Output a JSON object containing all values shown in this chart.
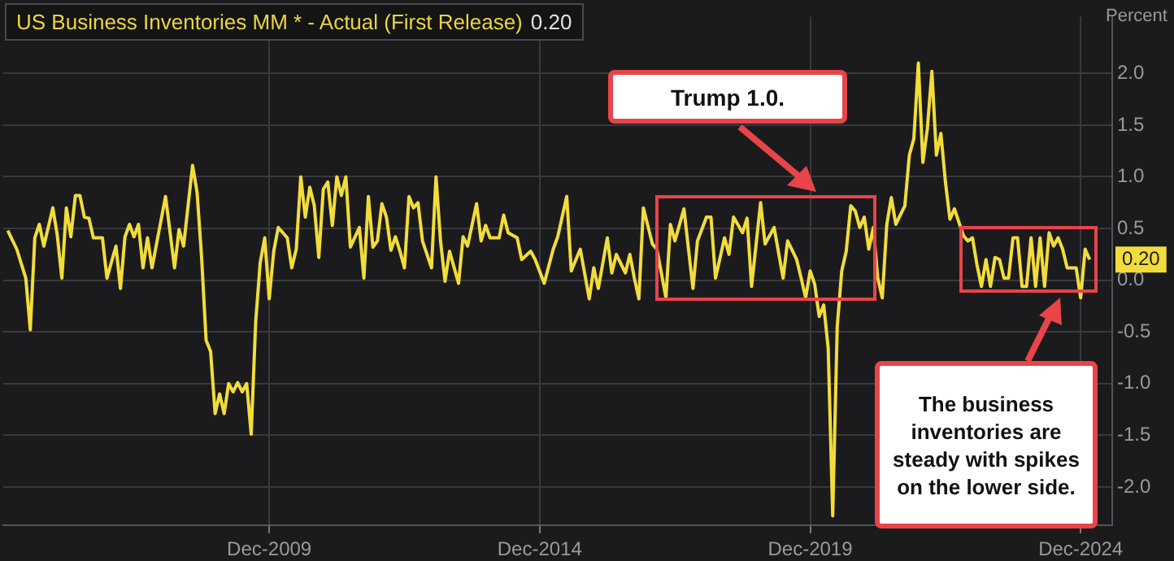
{
  "chart_data": {
    "type": "line",
    "title": "US Business Inventories MM * - Actual (First Release)",
    "subtitle": "0.20",
    "ylabel": "Percent",
    "annotations": [
      "Trump 1.0.",
      "The business inventories are steady with spikes on the lower side."
    ],
    "x": [
      "2005-02",
      "2005-04",
      "2005-06",
      "2005-07",
      "2005-08",
      "2005-09",
      "2005-10",
      "2005-12",
      "2006-01",
      "2006-02",
      "2006-03",
      "2006-04",
      "2006-05",
      "2006-06",
      "2006-07",
      "2006-08",
      "2006-09",
      "2006-11",
      "2006-12",
      "2007-02",
      "2007-03",
      "2007-04",
      "2007-05",
      "2007-06",
      "2007-07",
      "2007-08",
      "2007-09",
      "2007-10",
      "2008-01",
      "2008-03",
      "2008-04",
      "2008-05",
      "2008-07",
      "2008-08",
      "2008-09",
      "2008-10",
      "2008-11",
      "2008-12",
      "2009-01",
      "2009-02",
      "2009-03",
      "2009-04",
      "2009-05",
      "2009-06",
      "2009-07",
      "2009-08",
      "2009-09",
      "2009-10",
      "2009-11",
      "2009-12",
      "2010-01",
      "2010-02",
      "2010-04",
      "2010-05",
      "2010-06",
      "2010-07",
      "2010-08",
      "2010-09",
      "2010-10",
      "2010-11",
      "2010-12",
      "2011-01",
      "2011-02",
      "2011-03",
      "2011-04",
      "2011-05",
      "2011-06",
      "2011-08",
      "2011-09",
      "2011-10",
      "2011-11",
      "2011-12",
      "2012-01",
      "2012-02",
      "2012-03",
      "2012-04",
      "2012-05",
      "2012-06",
      "2012-07",
      "2012-08",
      "2012-09",
      "2012-10",
      "2012-12",
      "2013-01",
      "2013-02",
      "2013-03",
      "2013-04",
      "2013-06",
      "2013-07",
      "2013-08",
      "2013-10",
      "2013-11",
      "2013-12",
      "2014-01",
      "2014-03",
      "2014-04",
      "2014-05",
      "2014-07",
      "2014-08",
      "2014-10",
      "2014-11",
      "2015-01",
      "2015-03",
      "2015-04",
      "2015-06",
      "2015-07",
      "2015-09",
      "2015-11",
      "2015-12",
      "2016-01",
      "2016-03",
      "2016-04",
      "2016-05",
      "2016-07",
      "2016-08",
      "2016-09",
      "2016-10",
      "2016-11",
      "2017-01",
      "2017-02",
      "2017-04",
      "2017-05",
      "2017-06",
      "2017-08",
      "2017-10",
      "2017-11",
      "2018-01",
      "2018-02",
      "2018-03",
      "2018-05",
      "2018-06",
      "2018-07",
      "2018-09",
      "2018-10",
      "2018-11",
      "2019-01",
      "2019-02",
      "2019-04",
      "2019-06",
      "2019-07",
      "2019-09",
      "2019-10",
      "2019-11",
      "2019-12",
      "2020-01",
      "2020-02",
      "2020-03",
      "2020-04",
      "2020-05",
      "2020-06",
      "2020-07",
      "2020-08",
      "2020-09",
      "2020-10",
      "2020-11",
      "2020-12",
      "2021-01",
      "2021-02",
      "2021-03",
      "2021-04",
      "2021-05",
      "2021-06",
      "2021-07",
      "2021-09",
      "2021-10",
      "2021-11",
      "2021-12",
      "2022-01",
      "2022-02",
      "2022-03",
      "2022-04",
      "2022-05",
      "2022-06",
      "2022-07",
      "2022-08",
      "2022-10",
      "2022-11",
      "2022-12",
      "2023-01",
      "2023-02",
      "2023-03",
      "2023-04",
      "2023-05",
      "2023-06",
      "2023-07",
      "2023-08",
      "2023-09",
      "2023-10",
      "2023-11",
      "2023-12",
      "2024-01",
      "2024-02",
      "2024-03",
      "2024-04",
      "2024-05",
      "2024-06",
      "2024-07",
      "2024-08",
      "2024-09",
      "2024-11",
      "2024-12",
      "2025-01",
      "2025-02"
    ],
    "series": [
      {
        "color": "#f2dc3c",
        "values": [
          0.48,
          0.3,
          0.02,
          -0.48,
          0.41,
          0.54,
          0.33,
          0.7,
          0.43,
          0.02,
          0.7,
          0.42,
          0.82,
          0.82,
          0.61,
          0.6,
          0.41,
          0.41,
          0.02,
          0.33,
          -0.08,
          0.42,
          0.54,
          0.42,
          0.54,
          0.12,
          0.41,
          0.12,
          0.81,
          0.12,
          0.49,
          0.33,
          1.11,
          0.85,
          0.22,
          -0.58,
          -0.69,
          -1.29,
          -1.1,
          -1.29,
          -1.0,
          -1.08,
          -0.99,
          -1.08,
          -1.0,
          -1.49,
          -0.4,
          0.17,
          0.41,
          -0.18,
          0.28,
          0.51,
          0.41,
          0.12,
          0.3,
          1.0,
          0.61,
          0.9,
          0.72,
          0.22,
          0.88,
          0.95,
          0.53,
          1.0,
          0.82,
          1.0,
          0.32,
          0.51,
          0.02,
          0.81,
          0.32,
          0.38,
          0.74,
          0.61,
          0.29,
          0.42,
          0.28,
          0.12,
          0.81,
          0.7,
          0.75,
          0.38,
          0.12,
          1.0,
          0.38,
          -0.01,
          0.28,
          -0.03,
          0.42,
          0.33,
          0.74,
          0.38,
          0.53,
          0.41,
          0.41,
          0.63,
          0.46,
          0.41,
          0.2,
          0.28,
          0.2,
          -0.03,
          0.3,
          0.42,
          0.81,
          0.09,
          0.3,
          -0.18,
          0.12,
          -0.08,
          0.41,
          0.07,
          0.25,
          0.07,
          0.25,
          0.02,
          -0.18,
          0.7,
          0.35,
          0.3,
          -0.17,
          0.54,
          0.38,
          0.69,
          -0.08,
          0.38,
          0.61,
          0.61,
          0.02,
          0.41,
          0.25,
          0.61,
          0.46,
          0.6,
          -0.06,
          0.75,
          0.35,
          0.51,
          0.02,
          0.38,
          0.2,
          0.02,
          -0.17,
          0.09,
          -0.04,
          -0.35,
          -0.24,
          -0.66,
          -2.28,
          -0.45,
          0.09,
          0.28,
          0.72,
          0.67,
          0.51,
          0.61,
          0.3,
          0.51,
          0.02,
          -0.17,
          0.54,
          0.8,
          0.54,
          0.72,
          1.21,
          1.37,
          2.1,
          1.14,
          1.47,
          2.02,
          1.21,
          1.42,
          0.95,
          0.59,
          0.69,
          0.43,
          0.38,
          0.41,
          0.15,
          -0.06,
          0.2,
          -0.06,
          0.22,
          0.2,
          0.02,
          0.02,
          0.41,
          0.41,
          -0.06,
          -0.06,
          0.41,
          -0.06,
          0.41,
          -0.06,
          0.46,
          0.33,
          0.41,
          0.3,
          0.12,
          0.12,
          -0.17,
          0.3,
          0.2
        ],
        "value_labels": [
          null,
          null,
          null,
          null,
          null,
          null,
          null,
          null,
          null,
          null,
          null,
          null,
          null,
          null,
          null,
          null,
          null,
          null,
          null,
          null,
          null,
          null,
          null,
          null,
          null,
          null,
          null,
          null,
          null,
          null,
          null,
          null,
          null,
          null,
          null,
          null,
          null,
          null,
          null,
          null,
          null,
          null,
          null,
          null,
          null,
          null,
          null,
          null,
          null,
          null,
          null,
          null,
          null,
          null,
          null,
          null,
          null,
          null,
          null,
          null,
          null,
          null,
          null,
          null,
          null,
          null,
          null,
          null,
          null,
          null,
          null,
          null,
          null,
          null,
          null,
          null,
          null,
          null,
          null,
          null,
          null,
          null,
          null,
          null,
          null,
          null,
          null,
          null,
          null,
          null,
          null,
          null,
          null,
          null,
          null,
          null,
          null,
          null,
          null,
          null,
          null,
          null,
          null,
          null,
          null,
          null,
          null,
          null,
          null,
          null,
          null,
          null,
          null,
          null,
          null,
          null,
          null,
          null,
          null,
          null,
          null,
          null,
          null,
          null,
          null,
          null,
          null,
          null,
          null,
          null,
          null,
          null,
          null,
          null,
          null,
          null,
          null,
          null,
          null,
          null,
          null,
          null,
          null,
          null,
          null,
          null,
          null,
          null,
          null,
          null,
          null,
          null,
          null,
          null,
          null,
          null,
          null,
          null,
          null,
          null,
          null,
          null,
          null,
          null,
          null,
          null,
          null,
          null,
          null,
          null,
          null,
          null,
          null,
          null,
          null,
          null,
          null,
          null,
          null,
          null,
          null,
          null,
          null,
          null,
          null,
          null,
          null,
          null,
          null,
          null,
          null,
          null,
          null,
          null,
          null,
          null,
          null,
          null,
          null,
          null,
          null,
          null,
          "0.20"
        ]
      }
    ],
    "xlim": [
      "2005-01",
      "2025-07"
    ],
    "xticks": [
      {
        "value": "2009-12",
        "label": "Dec-2009"
      },
      {
        "value": "2014-12",
        "label": "Dec-2014"
      },
      {
        "value": "2019-12",
        "label": "Dec-2019"
      },
      {
        "value": "2024-12",
        "label": "Dec-2024"
      }
    ],
    "ylim": [
      -2.37,
      2.55
    ],
    "yticks": [
      {
        "value": -2,
        "label": "-2.0"
      },
      {
        "value": -1.5,
        "label": "-1.5"
      },
      {
        "value": -1,
        "label": "-1.0"
      },
      {
        "value": -0.5,
        "label": "-0.5"
      },
      {
        "value": 0,
        "label": "0.0"
      },
      {
        "value": 0.5,
        "label": "0.5"
      },
      {
        "value": 1,
        "label": "1.0"
      },
      {
        "value": 1.5,
        "label": "1.5"
      },
      {
        "value": 2,
        "label": "2.0"
      }
    ],
    "grid": true,
    "marker": "none",
    "line_style": "solid"
  }
}
